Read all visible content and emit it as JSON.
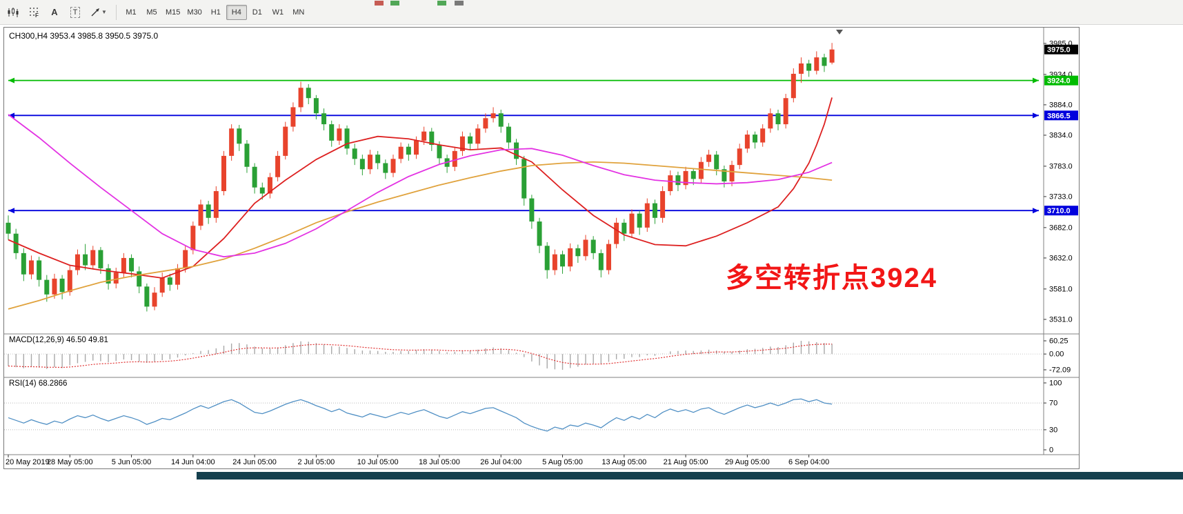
{
  "toolbar": {
    "timeframes": [
      "M1",
      "M5",
      "M15",
      "M30",
      "H1",
      "H4",
      "D1",
      "W1",
      "MN"
    ],
    "selected_timeframe": "H4",
    "annotation_tool_label": "A",
    "textbox_tool_label": "T",
    "grid_tool_label": "F"
  },
  "chart": {
    "title": "CH300,H4  3953.4 3985.8 3950.5 3975.0",
    "annotation_text": "多空转折点3924",
    "annotation_color": "#f21616"
  },
  "chart_data": {
    "type": "candlestick",
    "symbol": "CH300",
    "timeframe": "H4",
    "ohlc_last": {
      "open": 3953.4,
      "high": 3985.8,
      "low": 3950.5,
      "close": 3975.0
    },
    "ylim": [
      3509,
      4011
    ],
    "y_axis_labels": [
      "3985.0",
      "3934.0",
      "3884.0",
      "3834.0",
      "3783.0",
      "3733.0",
      "3682.0",
      "3632.0",
      "3581.0",
      "3531.0"
    ],
    "x_labels": [
      "20 May 2019",
      "28 May 05:00",
      "5 Jun 05:00",
      "14 Jun 04:00",
      "24 Jun 05:00",
      "2 Jul 05:00",
      "10 Jul 05:00",
      "18 Jul 05:00",
      "26 Jul 04:00",
      "5 Aug 05:00",
      "13 Aug 05:00",
      "21 Aug 05:00",
      "29 Aug 05:00",
      "6 Sep 04:00"
    ],
    "label_every": 8,
    "colors": {
      "up": "#e8432c",
      "down": "#2aa035",
      "ma_fast": "#dd2020",
      "ma_mid": "#e0a23c",
      "ma_slow": "#e332e3",
      "macd_hist": "#a8a8a8",
      "macd_signal": "#e03030",
      "rsi": "#4f8fc4",
      "hline_green": "#00bb00",
      "hline_blue": "#0000dd"
    },
    "hlines": [
      {
        "price": 3924.0,
        "label": "3924.0",
        "color": "#00bb00"
      },
      {
        "price": 3866.5,
        "label": "3866.5",
        "color": "#0000dd"
      },
      {
        "price": 3710.0,
        "label": "3710.0",
        "color": "#0000dd"
      }
    ],
    "current_price": {
      "value": 3975.0,
      "label": "3975.0"
    },
    "candles": [
      [
        3690,
        3702,
        3662,
        3672
      ],
      [
        3672,
        3680,
        3630,
        3640
      ],
      [
        3640,
        3648,
        3594,
        3605
      ],
      [
        3605,
        3636,
        3597,
        3628
      ],
      [
        3628,
        3634,
        3585,
        3596
      ],
      [
        3596,
        3604,
        3560,
        3572
      ],
      [
        3572,
        3606,
        3565,
        3598
      ],
      [
        3598,
        3604,
        3564,
        3576
      ],
      [
        3576,
        3620,
        3570,
        3612
      ],
      [
        3612,
        3646,
        3604,
        3638
      ],
      [
        3638,
        3655,
        3612,
        3620
      ],
      [
        3620,
        3652,
        3613,
        3645
      ],
      [
        3645,
        3650,
        3606,
        3615
      ],
      [
        3615,
        3622,
        3580,
        3590
      ],
      [
        3590,
        3616,
        3582,
        3608
      ],
      [
        3608,
        3640,
        3600,
        3632
      ],
      [
        3632,
        3638,
        3600,
        3610
      ],
      [
        3610,
        3618,
        3574,
        3585
      ],
      [
        3585,
        3590,
        3544,
        3552
      ],
      [
        3552,
        3584,
        3546,
        3575
      ],
      [
        3575,
        3608,
        3568,
        3600
      ],
      [
        3600,
        3606,
        3578,
        3588
      ],
      [
        3588,
        3622,
        3580,
        3615
      ],
      [
        3615,
        3652,
        3608,
        3645
      ],
      [
        3645,
        3692,
        3638,
        3685
      ],
      [
        3685,
        3728,
        3678,
        3720
      ],
      [
        3720,
        3726,
        3688,
        3698
      ],
      [
        3698,
        3750,
        3690,
        3742
      ],
      [
        3742,
        3808,
        3735,
        3800
      ],
      [
        3800,
        3852,
        3792,
        3845
      ],
      [
        3845,
        3851,
        3808,
        3820
      ],
      [
        3820,
        3826,
        3772,
        3782
      ],
      [
        3782,
        3788,
        3738,
        3748
      ],
      [
        3748,
        3756,
        3728,
        3738
      ],
      [
        3738,
        3772,
        3730,
        3765
      ],
      [
        3765,
        3808,
        3758,
        3800
      ],
      [
        3800,
        3856,
        3794,
        3848
      ],
      [
        3848,
        3888,
        3840,
        3880
      ],
      [
        3880,
        3922,
        3872,
        3912
      ],
      [
        3912,
        3918,
        3885,
        3895
      ],
      [
        3895,
        3900,
        3860,
        3870
      ],
      [
        3870,
        3878,
        3842,
        3852
      ],
      [
        3852,
        3858,
        3815,
        3825
      ],
      [
        3825,
        3852,
        3818,
        3845
      ],
      [
        3845,
        3850,
        3802,
        3812
      ],
      [
        3812,
        3820,
        3785,
        3795
      ],
      [
        3795,
        3802,
        3768,
        3778
      ],
      [
        3778,
        3810,
        3770,
        3802
      ],
      [
        3802,
        3808,
        3778,
        3788
      ],
      [
        3788,
        3794,
        3762,
        3772
      ],
      [
        3772,
        3802,
        3765,
        3795
      ],
      [
        3795,
        3822,
        3788,
        3815
      ],
      [
        3815,
        3820,
        3792,
        3802
      ],
      [
        3802,
        3832,
        3795,
        3825
      ],
      [
        3825,
        3848,
        3818,
        3840
      ],
      [
        3840,
        3846,
        3808,
        3818
      ],
      [
        3818,
        3824,
        3786,
        3796
      ],
      [
        3796,
        3802,
        3772,
        3782
      ],
      [
        3782,
        3815,
        3775,
        3808
      ],
      [
        3808,
        3840,
        3800,
        3832
      ],
      [
        3832,
        3838,
        3810,
        3820
      ],
      [
        3820,
        3852,
        3812,
        3845
      ],
      [
        3845,
        3870,
        3838,
        3862
      ],
      [
        3862,
        3880,
        3855,
        3870
      ],
      [
        3870,
        3876,
        3838,
        3848
      ],
      [
        3848,
        3854,
        3812,
        3822
      ],
      [
        3822,
        3828,
        3785,
        3795
      ],
      [
        3795,
        3800,
        3718,
        3730
      ],
      [
        3730,
        3736,
        3680,
        3692
      ],
      [
        3692,
        3698,
        3640,
        3652
      ],
      [
        3652,
        3658,
        3598,
        3612
      ],
      [
        3612,
        3646,
        3604,
        3638
      ],
      [
        3638,
        3644,
        3606,
        3618
      ],
      [
        3618,
        3656,
        3610,
        3648
      ],
      [
        3648,
        3654,
        3624,
        3635
      ],
      [
        3635,
        3670,
        3628,
        3662
      ],
      [
        3662,
        3668,
        3630,
        3640
      ],
      [
        3640,
        3646,
        3600,
        3612
      ],
      [
        3612,
        3662,
        3605,
        3655
      ],
      [
        3655,
        3698,
        3648,
        3690
      ],
      [
        3690,
        3696,
        3660,
        3672
      ],
      [
        3672,
        3712,
        3665,
        3705
      ],
      [
        3705,
        3710,
        3670,
        3682
      ],
      [
        3682,
        3730,
        3675,
        3722
      ],
      [
        3722,
        3728,
        3688,
        3698
      ],
      [
        3698,
        3750,
        3690,
        3742
      ],
      [
        3742,
        3776,
        3735,
        3768
      ],
      [
        3768,
        3774,
        3742,
        3752
      ],
      [
        3752,
        3782,
        3745,
        3775
      ],
      [
        3775,
        3780,
        3752,
        3762
      ],
      [
        3762,
        3798,
        3755,
        3790
      ],
      [
        3790,
        3810,
        3782,
        3802
      ],
      [
        3802,
        3808,
        3768,
        3778
      ],
      [
        3778,
        3784,
        3748,
        3758
      ],
      [
        3758,
        3792,
        3750,
        3785
      ],
      [
        3785,
        3820,
        3778,
        3812
      ],
      [
        3812,
        3842,
        3805,
        3835
      ],
      [
        3835,
        3840,
        3812,
        3822
      ],
      [
        3822,
        3852,
        3815,
        3845
      ],
      [
        3845,
        3878,
        3838,
        3870
      ],
      [
        3870,
        3876,
        3842,
        3852
      ],
      [
        3852,
        3902,
        3845,
        3895
      ],
      [
        3895,
        3944,
        3888,
        3935
      ],
      [
        3935,
        3962,
        3920,
        3952
      ],
      [
        3952,
        3958,
        3930,
        3940
      ],
      [
        3940,
        3972,
        3934,
        3962
      ],
      [
        3962,
        3968,
        3938,
        3948
      ],
      [
        3953.4,
        3985.8,
        3950.5,
        3975
      ]
    ],
    "moving_averages": [
      {
        "name": "ma-fast-red",
        "color": "#dd2020",
        "points": [
          [
            0,
            3662
          ],
          [
            4,
            3640
          ],
          [
            8,
            3620
          ],
          [
            12,
            3612
          ],
          [
            16,
            3606
          ],
          [
            20,
            3599
          ],
          [
            24,
            3618
          ],
          [
            28,
            3664
          ],
          [
            32,
            3722
          ],
          [
            36,
            3760
          ],
          [
            40,
            3794
          ],
          [
            44,
            3820
          ],
          [
            48,
            3832
          ],
          [
            52,
            3828
          ],
          [
            56,
            3818
          ],
          [
            60,
            3810
          ],
          [
            64,
            3813
          ],
          [
            68,
            3790
          ],
          [
            72,
            3744
          ],
          [
            76,
            3702
          ],
          [
            80,
            3670
          ],
          [
            84,
            3654
          ],
          [
            88,
            3652
          ],
          [
            92,
            3668
          ],
          [
            96,
            3690
          ],
          [
            100,
            3716
          ],
          [
            102,
            3746
          ],
          [
            104,
            3788
          ],
          [
            105,
            3818
          ],
          [
            106,
            3852
          ],
          [
            107,
            3896
          ]
        ]
      },
      {
        "name": "ma-mid-orange",
        "color": "#e0a23c",
        "points": [
          [
            0,
            3548
          ],
          [
            4,
            3562
          ],
          [
            8,
            3578
          ],
          [
            12,
            3592
          ],
          [
            16,
            3602
          ],
          [
            20,
            3610
          ],
          [
            24,
            3618
          ],
          [
            28,
            3630
          ],
          [
            32,
            3648
          ],
          [
            36,
            3668
          ],
          [
            40,
            3690
          ],
          [
            44,
            3708
          ],
          [
            48,
            3724
          ],
          [
            52,
            3738
          ],
          [
            56,
            3752
          ],
          [
            60,
            3764
          ],
          [
            64,
            3775
          ],
          [
            68,
            3784
          ],
          [
            72,
            3788
          ],
          [
            76,
            3790
          ],
          [
            80,
            3788
          ],
          [
            84,
            3784
          ],
          [
            88,
            3780
          ],
          [
            92,
            3776
          ],
          [
            96,
            3772
          ],
          [
            100,
            3768
          ],
          [
            104,
            3764
          ],
          [
            107,
            3760
          ]
        ]
      },
      {
        "name": "ma-slow-magenta",
        "color": "#e332e3",
        "points": [
          [
            0,
            3868
          ],
          [
            4,
            3830
          ],
          [
            8,
            3788
          ],
          [
            12,
            3748
          ],
          [
            16,
            3710
          ],
          [
            20,
            3672
          ],
          [
            24,
            3646
          ],
          [
            28,
            3634
          ],
          [
            32,
            3640
          ],
          [
            36,
            3656
          ],
          [
            40,
            3680
          ],
          [
            44,
            3710
          ],
          [
            48,
            3740
          ],
          [
            52,
            3766
          ],
          [
            56,
            3786
          ],
          [
            60,
            3800
          ],
          [
            64,
            3810
          ],
          [
            68,
            3812
          ],
          [
            72,
            3801
          ],
          [
            76,
            3784
          ],
          [
            80,
            3769
          ],
          [
            84,
            3760
          ],
          [
            88,
            3756
          ],
          [
            92,
            3754
          ],
          [
            96,
            3756
          ],
          [
            100,
            3761
          ],
          [
            104,
            3773
          ],
          [
            107,
            3789
          ]
        ]
      }
    ],
    "macd": {
      "label": "MACD(12,26,9) 46.50 49.81",
      "axis_labels": [
        "60.25",
        "0.00",
        "-72.09"
      ],
      "signal_period": 9,
      "values": [
        -55,
        -60,
        -65,
        -58,
        -62,
        -68,
        -60,
        -64,
        -52,
        -42,
        -36,
        -30,
        -33,
        -38,
        -32,
        -25,
        -28,
        -34,
        -40,
        -35,
        -28,
        -24,
        -16,
        -6,
        4,
        14,
        18,
        26,
        38,
        48,
        50,
        44,
        34,
        26,
        24,
        30,
        40,
        50,
        58,
        56,
        50,
        44,
        36,
        34,
        28,
        22,
        16,
        16,
        14,
        10,
        10,
        14,
        14,
        18,
        22,
        20,
        14,
        8,
        10,
        16,
        16,
        20,
        26,
        30,
        26,
        18,
        6,
        -14,
        -34,
        -52,
        -66,
        -70,
        -72.09,
        -64,
        -58,
        -48,
        -44,
        -44,
        -36,
        -24,
        -22,
        -14,
        -14,
        -6,
        -8,
        2,
        12,
        14,
        16,
        14,
        16,
        20,
        16,
        10,
        10,
        16,
        22,
        24,
        28,
        34,
        32,
        40,
        52,
        60.25,
        58,
        54,
        50,
        46.5
      ]
    },
    "rsi": {
      "label": "RSI(14) 68.2866",
      "axis_labels": [
        "100",
        "70",
        "30",
        "0"
      ],
      "levels": [
        70,
        30
      ],
      "values": [
        48,
        44,
        40,
        45,
        41,
        38,
        43,
        40,
        46,
        51,
        48,
        52,
        47,
        43,
        47,
        51,
        48,
        44,
        38,
        42,
        47,
        45,
        50,
        55,
        61,
        66,
        62,
        67,
        72,
        75,
        70,
        63,
        56,
        54,
        58,
        63,
        68,
        72,
        75,
        71,
        66,
        62,
        57,
        61,
        55,
        52,
        49,
        54,
        51,
        48,
        52,
        56,
        53,
        57,
        60,
        55,
        50,
        47,
        52,
        57,
        54,
        58,
        62,
        63,
        58,
        53,
        48,
        40,
        35,
        31,
        28,
        34,
        31,
        37,
        35,
        40,
        37,
        33,
        41,
        48,
        44,
        50,
        46,
        53,
        48,
        56,
        61,
        57,
        60,
        56,
        61,
        63,
        57,
        53,
        58,
        63,
        67,
        63,
        66,
        70,
        66,
        70,
        75,
        76,
        72,
        75,
        70,
        68.29
      ]
    }
  }
}
